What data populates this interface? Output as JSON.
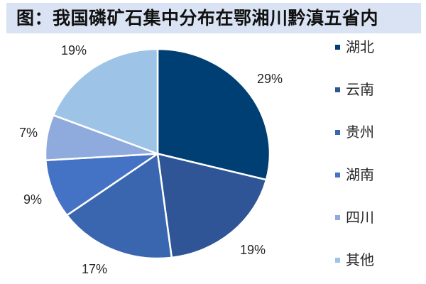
{
  "title": "图：我国磷矿石集中分布在鄂湘川黔滇五省内",
  "colors": {
    "title_bg": "#DAE3F3"
  },
  "chart_data": {
    "type": "pie",
    "title": "图：我国磷矿石集中分布在鄂湘川黔滇五省内",
    "categories": [
      "湖北",
      "云南",
      "贵州",
      "湖南",
      "四川",
      "其他"
    ],
    "values": [
      29,
      19,
      17,
      9,
      7,
      19
    ],
    "unit": "%",
    "data_labels": [
      "29%",
      "19%",
      "17%",
      "9%",
      "7%",
      "19%"
    ],
    "colors": [
      "#003F73",
      "#2F5597",
      "#3A66B0",
      "#4472C4",
      "#8FAADC",
      "#9DC3E6"
    ],
    "start_angle_deg": 0,
    "direction": "clockwise",
    "legend_position": "right"
  },
  "legend": [
    {
      "label": "湖北",
      "color": "#003F73"
    },
    {
      "label": "云南",
      "color": "#2F5597"
    },
    {
      "label": "贵州",
      "color": "#3A66B0"
    },
    {
      "label": "湖南",
      "color": "#4472C4"
    },
    {
      "label": "四川",
      "color": "#8FAADC"
    },
    {
      "label": "其他",
      "color": "#9DC3E6"
    }
  ]
}
